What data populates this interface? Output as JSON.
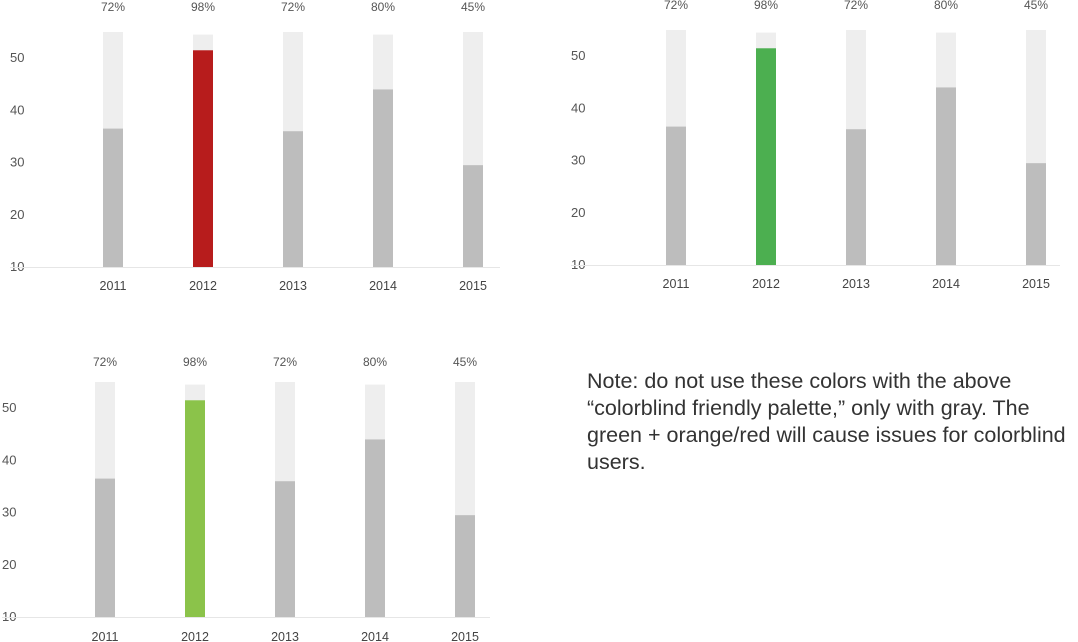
{
  "chart_data": [
    {
      "type": "bar",
      "stacked": "progress",
      "categories": [
        "2011",
        "2012",
        "2013",
        "2014",
        "2015"
      ],
      "series": [
        {
          "values": [
            36.5,
            51.5,
            36,
            44,
            29.5
          ]
        }
      ],
      "track_max": [
        55,
        54.5,
        55,
        54.5,
        55
      ],
      "percent_labels": [
        "72%",
        "98%",
        "72%",
        "80%",
        "45%"
      ],
      "y_ticks": [
        10,
        20,
        30,
        40,
        50
      ],
      "ylim": [
        10,
        55
      ],
      "highlight_index": 1,
      "highlight_color": "#B71C1C",
      "bar_color": "#BDBDBD",
      "track_color": "#EEEEEE",
      "grid": false
    },
    {
      "type": "bar",
      "stacked": "progress",
      "categories": [
        "2011",
        "2012",
        "2013",
        "2014",
        "2015"
      ],
      "series": [
        {
          "values": [
            36.5,
            51.5,
            36,
            44,
            29.5
          ]
        }
      ],
      "track_max": [
        55,
        54.5,
        55,
        54.5,
        55
      ],
      "percent_labels": [
        "72%",
        "98%",
        "72%",
        "80%",
        "45%"
      ],
      "y_ticks": [
        10,
        20,
        30,
        40,
        50
      ],
      "ylim": [
        10,
        55
      ],
      "highlight_index": 1,
      "highlight_color": "#4CAF50",
      "bar_color": "#BDBDBD",
      "track_color": "#EEEEEE",
      "grid": false
    },
    {
      "type": "bar",
      "stacked": "progress",
      "categories": [
        "2011",
        "2012",
        "2013",
        "2014",
        "2015"
      ],
      "series": [
        {
          "values": [
            36.5,
            51.5,
            36,
            44,
            29.5
          ]
        }
      ],
      "track_max": [
        55,
        54.5,
        55,
        54.5,
        55
      ],
      "percent_labels": [
        "72%",
        "98%",
        "72%",
        "80%",
        "45%"
      ],
      "y_ticks": [
        10,
        20,
        30,
        40,
        50
      ],
      "ylim": [
        10,
        55
      ],
      "highlight_index": 1,
      "highlight_color": "#8BC34A",
      "bar_color": "#BDBDBD",
      "track_color": "#EEEEEE",
      "grid": false
    }
  ],
  "note": {
    "text": "Note: do not use these colors with the above “colorblind friendly palette,” only with gray. The green + orange/red will cause issues for colorblind users."
  }
}
